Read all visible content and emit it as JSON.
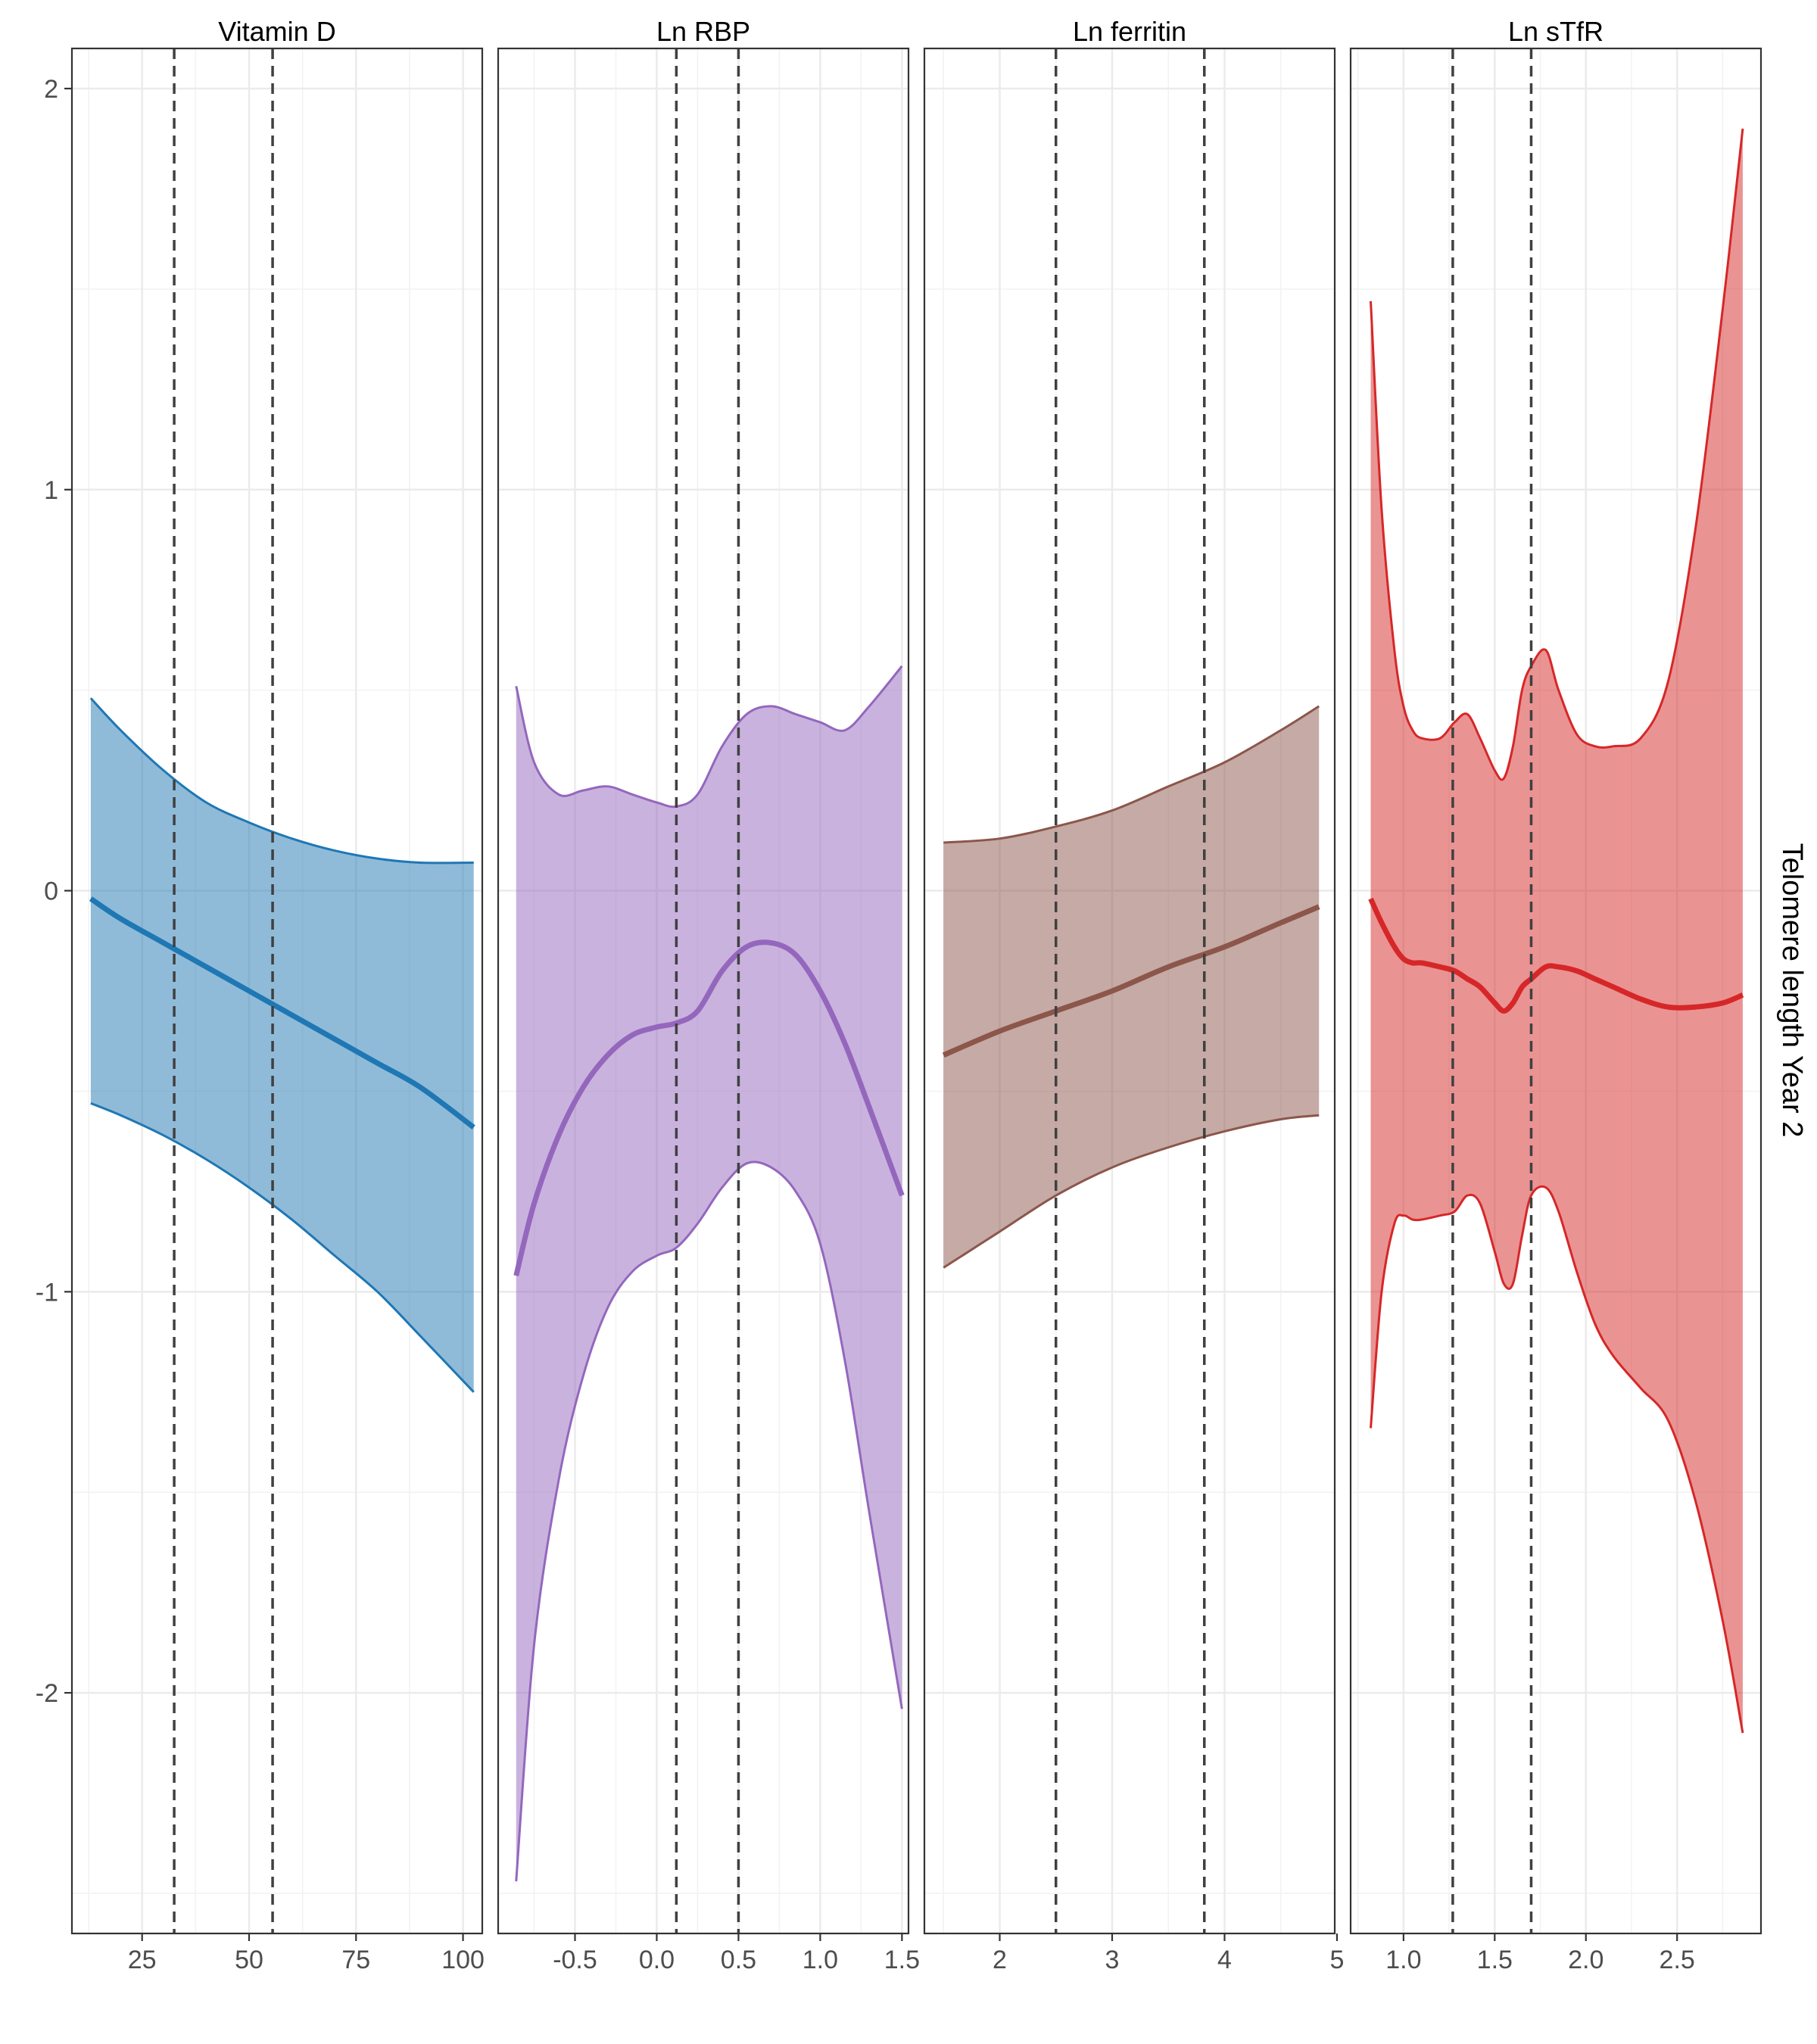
{
  "y_axis_label": "Telomere length Year 2",
  "chart_data": [
    {
      "type": "line",
      "panel_title": "Vitamin D",
      "color": "#1f77b4",
      "xlim": [
        8.6,
        104.5
      ],
      "ylim": [
        -2.6,
        2.1
      ],
      "x_ticks": [
        25,
        50,
        75,
        100
      ],
      "x_tick_labels": [
        "25",
        "50",
        "75",
        "100"
      ],
      "y_ticks": [
        -2,
        -1,
        0,
        1,
        2
      ],
      "y_tick_labels": [
        "-2",
        "-1",
        "0",
        "1",
        "2"
      ],
      "vlines": [
        32.5,
        55.5
      ],
      "x": [
        13,
        20,
        30,
        40,
        50,
        60,
        70,
        80,
        90,
        102.5
      ],
      "estimate": [
        -0.02,
        -0.07,
        -0.13,
        -0.19,
        -0.25,
        -0.31,
        -0.37,
        -0.43,
        -0.49,
        -0.59
      ],
      "upper": [
        0.48,
        0.4,
        0.3,
        0.22,
        0.17,
        0.13,
        0.1,
        0.08,
        0.07,
        0.07
      ],
      "lower": [
        -0.53,
        -0.56,
        -0.61,
        -0.67,
        -0.74,
        -0.82,
        -0.91,
        -1.0,
        -1.11,
        -1.25
      ],
      "grid": true
    },
    {
      "type": "line",
      "panel_title": "Ln RBP",
      "color": "#9467bd",
      "xlim": [
        -0.97,
        1.54
      ],
      "ylim": [
        -2.6,
        2.1
      ],
      "x_ticks": [
        -0.5,
        0.0,
        0.5,
        1.0,
        1.5
      ],
      "x_tick_labels": [
        "-0.5",
        "0.0",
        "0.5",
        "1.0",
        "1.5"
      ],
      "y_ticks": [
        -2,
        -1,
        0,
        1,
        2
      ],
      "y_tick_labels": [
        "-2",
        "-1",
        "0",
        "1",
        "2"
      ],
      "vlines": [
        0.12,
        0.5
      ],
      "x": [
        -0.86,
        -0.75,
        -0.6,
        -0.45,
        -0.3,
        -0.15,
        0.0,
        0.12,
        0.25,
        0.4,
        0.55,
        0.7,
        0.85,
        1.0,
        1.15,
        1.3,
        1.5
      ],
      "estimate": [
        -0.96,
        -0.78,
        -0.61,
        -0.49,
        -0.41,
        -0.36,
        -0.34,
        -0.33,
        -0.3,
        -0.2,
        -0.14,
        -0.13,
        -0.16,
        -0.25,
        -0.38,
        -0.54,
        -0.76
      ],
      "upper": [
        0.51,
        0.32,
        0.24,
        0.25,
        0.26,
        0.24,
        0.22,
        0.21,
        0.24,
        0.36,
        0.44,
        0.46,
        0.44,
        0.42,
        0.4,
        0.46,
        0.56
      ],
      "lower": [
        -2.47,
        -1.88,
        -1.47,
        -1.21,
        -1.04,
        -0.95,
        -0.91,
        -0.89,
        -0.83,
        -0.74,
        -0.68,
        -0.69,
        -0.75,
        -0.88,
        -1.17,
        -1.55,
        -2.04
      ],
      "grid": true
    },
    {
      "type": "line",
      "panel_title": "Ln ferritin",
      "color": "#8c564b",
      "xlim": [
        1.33,
        4.98
      ],
      "ylim": [
        -2.6,
        2.1
      ],
      "x_ticks": [
        2,
        3,
        4,
        5
      ],
      "x_tick_labels": [
        "2",
        "3",
        "4",
        "5"
      ],
      "y_ticks": [
        -2,
        -1,
        0,
        1,
        2
      ],
      "y_tick_labels": [
        "-2",
        "-1",
        "0",
        "1",
        "2"
      ],
      "vlines": [
        2.5,
        3.82
      ],
      "x": [
        1.5,
        2.0,
        2.5,
        3.0,
        3.5,
        4.0,
        4.5,
        4.84
      ],
      "estimate": [
        -0.41,
        -0.35,
        -0.3,
        -0.25,
        -0.19,
        -0.14,
        -0.08,
        -0.04
      ],
      "upper": [
        0.12,
        0.13,
        0.16,
        0.2,
        0.26,
        0.32,
        0.4,
        0.46
      ],
      "lower": [
        -0.94,
        -0.85,
        -0.76,
        -0.69,
        -0.64,
        -0.6,
        -0.57,
        -0.56
      ],
      "grid": true
    },
    {
      "type": "line",
      "panel_title": "Ln sTfR",
      "color": "#d62728",
      "xlim": [
        0.71,
        2.96
      ],
      "ylim": [
        -2.6,
        2.1
      ],
      "x_ticks": [
        1.0,
        1.5,
        2.0,
        2.5
      ],
      "x_tick_labels": [
        "1.0",
        "1.5",
        "2.0",
        "2.5"
      ],
      "y_ticks": [
        -2,
        -1,
        0,
        1,
        2
      ],
      "y_tick_labels": [
        "-2",
        "-1",
        "0",
        "1",
        "2"
      ],
      "vlines": [
        1.27,
        1.7
      ],
      "x": [
        0.82,
        0.88,
        0.95,
        1.0,
        1.05,
        1.1,
        1.2,
        1.28,
        1.35,
        1.42,
        1.5,
        1.55,
        1.6,
        1.65,
        1.7,
        1.78,
        1.85,
        1.95,
        2.05,
        2.15,
        2.3,
        2.45,
        2.6,
        2.75,
        2.86
      ],
      "estimate": [
        -0.02,
        -0.08,
        -0.14,
        -0.17,
        -0.18,
        -0.18,
        -0.19,
        -0.2,
        -0.22,
        -0.24,
        -0.28,
        -0.3,
        -0.28,
        -0.24,
        -0.22,
        -0.19,
        -0.19,
        -0.2,
        -0.22,
        -0.24,
        -0.27,
        -0.29,
        -0.29,
        -0.28,
        -0.26
      ],
      "upper": [
        1.47,
        0.95,
        0.6,
        0.46,
        0.4,
        0.38,
        0.38,
        0.42,
        0.44,
        0.38,
        0.3,
        0.28,
        0.36,
        0.5,
        0.56,
        0.6,
        0.5,
        0.39,
        0.36,
        0.36,
        0.38,
        0.52,
        0.9,
        1.45,
        1.9
      ],
      "lower": [
        -1.34,
        -1.0,
        -0.83,
        -0.81,
        -0.82,
        -0.82,
        -0.81,
        -0.8,
        -0.76,
        -0.78,
        -0.9,
        -0.98,
        -0.98,
        -0.86,
        -0.76,
        -0.74,
        -0.8,
        -0.95,
        -1.08,
        -1.16,
        -1.24,
        -1.32,
        -1.52,
        -1.82,
        -2.1
      ],
      "grid": true
    }
  ]
}
